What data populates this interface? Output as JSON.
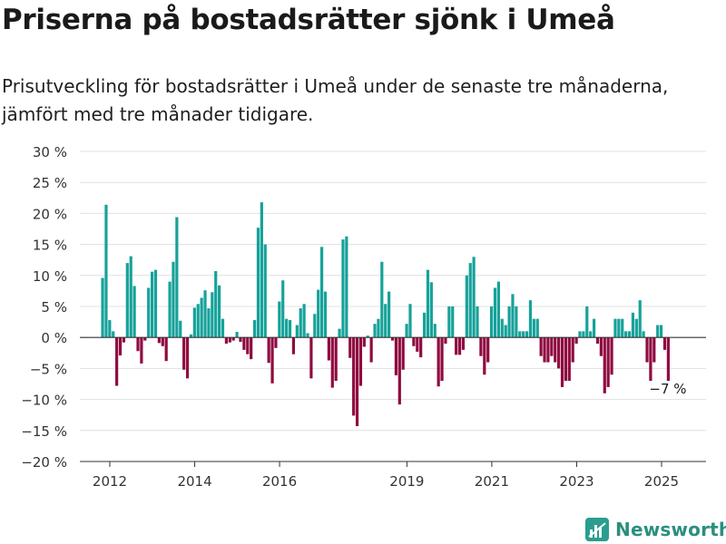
{
  "header": {
    "title": "Priserna på bostadsrätter sjönk i Umeå",
    "subtitle": "Prisutveckling för bostadsrätter i Umeå under de senaste tre månaderna, jämfört med tre månader tidigare."
  },
  "brand": {
    "name": "Newsworthy",
    "color": "#2a9d8f"
  },
  "colors": {
    "positive": "#16a29a",
    "negative": "#8f0a40",
    "grid": "#e0e0e0",
    "axis": "#333333"
  },
  "chart_data": {
    "type": "bar",
    "ylim": [
      -20,
      30
    ],
    "yticks": [
      -20,
      -15,
      -10,
      -5,
      0,
      5,
      10,
      15,
      20,
      25,
      30
    ],
    "ytick_labels": [
      "−20 %",
      "−15 %",
      "−10 %",
      "−5 %",
      "0 %",
      "5 %",
      "10 %",
      "15 %",
      "20 %",
      "25 %",
      "30 %"
    ],
    "xticks": [
      2012,
      2014,
      2016,
      2019,
      2021,
      2023,
      2025
    ],
    "xtick_labels": [
      "2012",
      "2014",
      "2016",
      "2019",
      "2021",
      "2023",
      "2025"
    ],
    "x_start": 2011.83,
    "x_step": 0.0833,
    "grid": "horizontal",
    "annotation": {
      "text": "−7 %",
      "value": -7
    },
    "values": [
      9.6,
      21.4,
      2.8,
      1.0,
      -7.8,
      -2.9,
      -0.8,
      12.0,
      13.1,
      8.3,
      -2.2,
      -4.2,
      -0.5,
      8.0,
      10.6,
      10.9,
      -0.9,
      -1.4,
      -3.8,
      9.0,
      12.2,
      19.4,
      2.7,
      -5.2,
      -6.6,
      0.5,
      4.8,
      5.4,
      6.4,
      7.6,
      4.7,
      7.3,
      10.7,
      8.4,
      3.0,
      -1.0,
      -0.8,
      -0.5,
      0.9,
      -0.7,
      -2.0,
      -2.7,
      -3.5,
      2.8,
      17.7,
      21.8,
      15.0,
      -4.1,
      -7.4,
      -1.7,
      5.8,
      9.2,
      3.0,
      2.8,
      -2.7,
      2.0,
      4.7,
      5.4,
      0.7,
      -6.6,
      3.8,
      7.7,
      14.6,
      7.4,
      -3.7,
      -8.1,
      -7.0,
      1.4,
      15.8,
      16.3,
      -3.3,
      -12.6,
      -14.3,
      -7.8,
      -1.5,
      0.3,
      -4.0,
      2.2,
      3.0,
      12.2,
      5.4,
      7.4,
      -0.5,
      -6.1,
      -10.8,
      -5.2,
      2.2,
      5.4,
      -1.4,
      -2.3,
      -3.2,
      4.0,
      10.9,
      8.9,
      2.2,
      -7.9,
      -7.0,
      -1.0,
      5.0,
      5.0,
      -2.8,
      -2.8,
      -2.0,
      10.0,
      12.0,
      13.0,
      5.0,
      -3.0,
      -6.0,
      -4.0,
      5.0,
      8.0,
      9.0,
      3.0,
      2.0,
      5.0,
      7.0,
      5.0,
      1.0,
      1.0,
      1.0,
      6.0,
      3.0,
      3.0,
      -3.0,
      -4.0,
      -4.0,
      -3.0,
      -4.0,
      -5.0,
      -8.0,
      -7.0,
      -7.0,
      -4.0,
      -1.0,
      1.0,
      1.0,
      5.0,
      1.0,
      3.0,
      -1.0,
      -3.0,
      -9.0,
      -8.0,
      -6.0,
      3.0,
      3.0,
      3.0,
      1.0,
      1.0,
      4.0,
      3.0,
      6.0,
      1.0,
      -4.0,
      -7.0,
      -4.0,
      2.0,
      2.0,
      -2.0,
      -7.0
    ]
  }
}
